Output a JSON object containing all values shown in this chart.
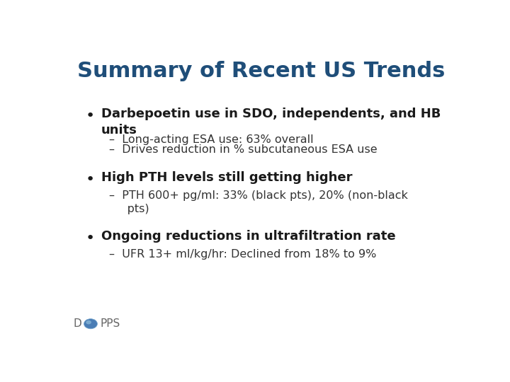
{
  "title": "Summary of Recent US Trends",
  "title_color": "#1F4E79",
  "title_fontsize": 22,
  "title_fontweight": "bold",
  "background_color": "#FFFFFF",
  "bullet1_bold": "Darbepoetin use in SDO, independents, and HB\nunits",
  "bullet1_sub1": "–  Long-acting ESA use: 63% overall",
  "bullet1_sub2": "–  Drives reduction in % subcutaneous ESA use",
  "bullet2_bold": "High PTH levels still getting higher",
  "bullet2_sub1": "–  PTH 600+ pg/ml: 33% (black pts), 20% (non-black\n     pts)",
  "bullet3_bold": "Ongoing reductions in ultrafiltration rate",
  "bullet3_sub1": "–  UFR 13+ ml/kg/hr: Declined from 18% to 9%",
  "bullet_fontsize": 13,
  "sub_fontsize": 11.5,
  "bullet_color": "#1a1a1a",
  "sub_color": "#333333",
  "font_family": "DejaVu Sans",
  "globe_color": "#4a7db5",
  "globe_edge": "#6699cc",
  "dopps_color": "#666666"
}
